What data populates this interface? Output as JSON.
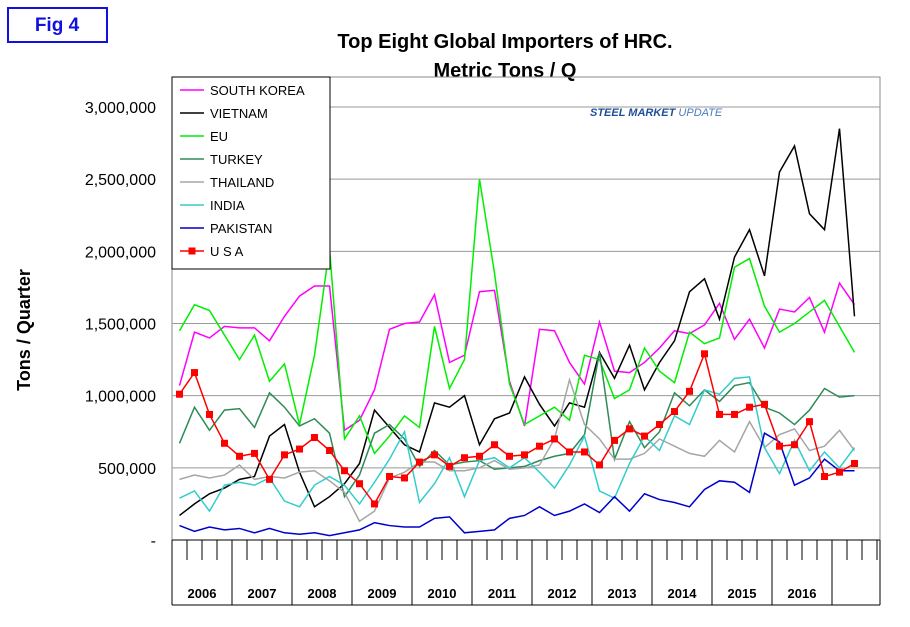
{
  "fig_label": "Fig 4",
  "logo": {
    "brand": "STEEL MARKET",
    "suffix": "UPDATE"
  },
  "chart_data": {
    "type": "line",
    "title": "Top Eight Global Importers of HRC.",
    "subtitle": "Metric Tons / Q",
    "y_label": "Tons / Quarter",
    "years": [
      "2006",
      "2007",
      "2008",
      "2009",
      "2010",
      "2011",
      "2012",
      "2013",
      "2014",
      "2015",
      "2016"
    ],
    "ylim": [
      0,
      3000000
    ],
    "yticks": [
      {
        "value": 0,
        "label": "-"
      },
      {
        "value": 500000,
        "label": "500,000"
      },
      {
        "value": 1000000,
        "label": "1,000,000"
      },
      {
        "value": 1500000,
        "label": "1,500,000"
      },
      {
        "value": 2000000,
        "label": "2,000,000"
      },
      {
        "value": 2500000,
        "label": "2,500,000"
      },
      {
        "value": 3000000,
        "label": "3,000,000"
      }
    ],
    "grid": true,
    "legend": "top-left",
    "series": [
      {
        "name": "SOUTH KOREA",
        "color": "#ff00ff",
        "values": [
          1070000,
          1440000,
          1400000,
          1480000,
          1470000,
          1470000,
          1380000,
          1550000,
          1690000,
          1760000,
          1760000,
          760000,
          830000,
          1040000,
          1460000,
          1500000,
          1510000,
          1700000,
          1230000,
          1280000,
          1720000,
          1730000,
          1100000,
          790000,
          1460000,
          1450000,
          1230000,
          1080000,
          1510000,
          1170000,
          1160000,
          1230000,
          1330000,
          1450000,
          1430000,
          1490000,
          1640000,
          1390000,
          1530000,
          1330000,
          1600000,
          1580000,
          1680000,
          1440000,
          1780000,
          1630000
        ]
      },
      {
        "name": "VIETNAM",
        "color": "#000000",
        "values": [
          170000,
          250000,
          320000,
          360000,
          420000,
          440000,
          720000,
          800000,
          470000,
          230000,
          300000,
          390000,
          530000,
          900000,
          780000,
          660000,
          610000,
          950000,
          920000,
          1000000,
          660000,
          840000,
          880000,
          1130000,
          940000,
          790000,
          950000,
          920000,
          1300000,
          1120000,
          1350000,
          1040000,
          1230000,
          1380000,
          1720000,
          1810000,
          1530000,
          1960000,
          2150000,
          1830000,
          2550000,
          2730000,
          2260000,
          2150000,
          2850000,
          1550000
        ]
      },
      {
        "name": "EU",
        "color": "#00ee00",
        "values": [
          1450000,
          1630000,
          1590000,
          1420000,
          1250000,
          1420000,
          1100000,
          1220000,
          800000,
          1280000,
          2020000,
          700000,
          860000,
          600000,
          720000,
          860000,
          780000,
          1480000,
          1050000,
          1250000,
          2500000,
          1850000,
          1080000,
          800000,
          860000,
          920000,
          830000,
          1280000,
          1250000,
          980000,
          1040000,
          1330000,
          1170000,
          1090000,
          1440000,
          1360000,
          1400000,
          1890000,
          1950000,
          1620000,
          1440000,
          1500000,
          1580000,
          1660000,
          1480000,
          1300000
        ]
      },
      {
        "name": "TURKEY",
        "color": "#2e8b57",
        "values": [
          670000,
          920000,
          760000,
          900000,
          910000,
          780000,
          1020000,
          920000,
          790000,
          840000,
          740000,
          300000,
          450000,
          740000,
          800000,
          700000,
          510000,
          620000,
          520000,
          540000,
          550000,
          490000,
          500000,
          510000,
          550000,
          580000,
          600000,
          730000,
          1300000,
          560000,
          820000,
          640000,
          750000,
          1020000,
          930000,
          1040000,
          960000,
          1070000,
          1090000,
          920000,
          880000,
          800000,
          900000,
          1050000,
          990000,
          1000000
        ]
      },
      {
        "name": "THAILAND",
        "color": "#a6a6a6",
        "values": [
          420000,
          450000,
          430000,
          450000,
          520000,
          420000,
          440000,
          430000,
          470000,
          480000,
          410000,
          330000,
          130000,
          200000,
          430000,
          470000,
          540000,
          540000,
          480000,
          480000,
          500000,
          550000,
          490000,
          500000,
          520000,
          700000,
          1110000,
          800000,
          700000,
          560000,
          560000,
          600000,
          700000,
          650000,
          600000,
          580000,
          690000,
          610000,
          820000,
          640000,
          730000,
          770000,
          620000,
          650000,
          760000,
          620000
        ]
      },
      {
        "name": "INDIA",
        "color": "#33cccc",
        "values": [
          290000,
          340000,
          200000,
          380000,
          400000,
          380000,
          430000,
          270000,
          230000,
          380000,
          440000,
          380000,
          250000,
          400000,
          560000,
          750000,
          260000,
          390000,
          570000,
          300000,
          550000,
          570000,
          500000,
          570000,
          470000,
          360000,
          520000,
          720000,
          340000,
          290000,
          530000,
          720000,
          620000,
          860000,
          800000,
          1040000,
          1010000,
          1120000,
          1130000,
          640000,
          460000,
          690000,
          480000,
          610000,
          500000,
          640000
        ]
      },
      {
        "name": "PAKISTAN",
        "color": "#0000cc",
        "values": [
          100000,
          60000,
          90000,
          70000,
          80000,
          50000,
          80000,
          50000,
          40000,
          50000,
          30000,
          50000,
          70000,
          120000,
          100000,
          90000,
          90000,
          150000,
          160000,
          50000,
          60000,
          70000,
          150000,
          170000,
          230000,
          170000,
          200000,
          250000,
          190000,
          300000,
          200000,
          320000,
          280000,
          260000,
          230000,
          350000,
          410000,
          400000,
          330000,
          740000,
          680000,
          380000,
          430000,
          560000,
          480000,
          480000
        ]
      },
      {
        "name": "U S A",
        "color": "#ff0000",
        "marker": "square",
        "values": [
          1010000,
          1160000,
          870000,
          670000,
          580000,
          600000,
          420000,
          590000,
          630000,
          710000,
          620000,
          480000,
          390000,
          250000,
          440000,
          430000,
          540000,
          590000,
          510000,
          570000,
          580000,
          660000,
          580000,
          590000,
          650000,
          700000,
          610000,
          610000,
          520000,
          690000,
          770000,
          720000,
          800000,
          890000,
          1030000,
          1290000,
          870000,
          870000,
          920000,
          940000,
          650000,
          660000,
          820000,
          440000,
          470000,
          530000
        ]
      }
    ]
  }
}
